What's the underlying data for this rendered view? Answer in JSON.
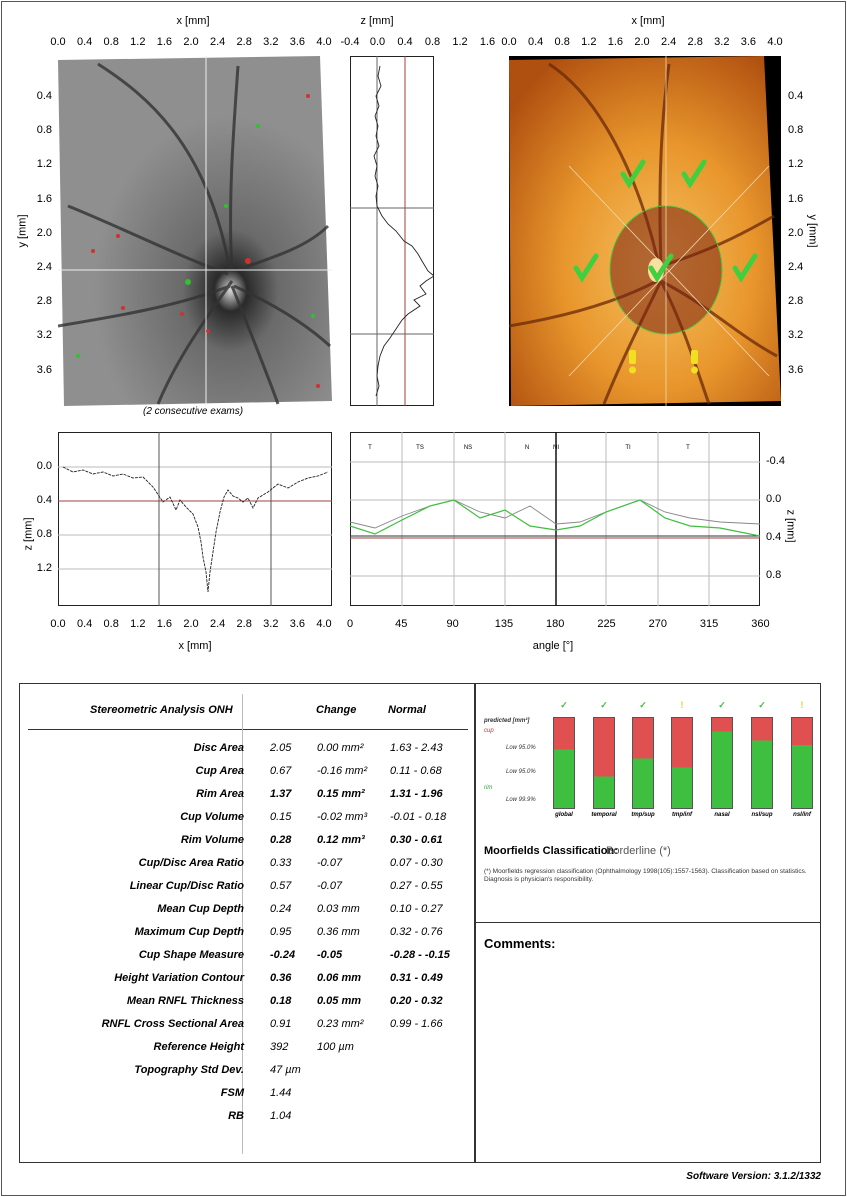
{
  "top_axes": {
    "x_title": "x [mm]",
    "z_title": "z [mm]",
    "y_title": "y [mm]",
    "x_ticks": [
      "0.0",
      "0.4",
      "0.8",
      "1.2",
      "1.6",
      "2.0",
      "2.4",
      "2.8",
      "3.2",
      "3.6",
      "4.0"
    ],
    "z_ticks": [
      "-0.4",
      "0.0",
      "0.4",
      "0.8",
      "1.2",
      "1.6"
    ],
    "y_ticks": [
      "0.4",
      "0.8",
      "1.2",
      "1.6",
      "2.0",
      "2.4",
      "2.8",
      "3.2",
      "3.6"
    ]
  },
  "caption": "(2 consecutive exams)",
  "bottom_left_chart": {
    "ylabel": "z [mm]",
    "xlabel": "x [mm]",
    "y_ticks": [
      "0.0",
      "0.4",
      "0.8",
      "1.2"
    ],
    "x_ticks": [
      "0.0",
      "0.4",
      "0.8",
      "1.2",
      "1.6",
      "2.0",
      "2.4",
      "2.8",
      "3.2",
      "3.6",
      "4.0"
    ]
  },
  "bottom_right_chart": {
    "xlabel": "angle [°]",
    "ylabel": "z [mm]",
    "x_ticks": [
      "0",
      "45",
      "90",
      "135",
      "180",
      "225",
      "270",
      "315",
      "360"
    ],
    "y_ticks": [
      "-0.4",
      "0.0",
      "0.4",
      "0.8"
    ],
    "sector_labels": [
      "T",
      "TS",
      "NS",
      "N",
      "NI",
      "TI",
      "T"
    ]
  },
  "table": {
    "title": "Stereometric Analysis ONH",
    "col_change": "Change",
    "col_normal": "Normal",
    "rows": [
      {
        "label": "Disc Area",
        "value": "2.05",
        "change": "0.00  mm²",
        "normal": "1.63 - 2.43",
        "bold": false
      },
      {
        "label": "Cup Area",
        "value": "0.67",
        "change": "-0.16  mm²",
        "normal": "0.11 - 0.68",
        "bold": false
      },
      {
        "label": "Rim Area",
        "value": "1.37",
        "change": "0.15  mm²",
        "normal": "1.31 - 1.96",
        "bold": true
      },
      {
        "label": "Cup Volume",
        "value": "0.15",
        "change": "-0.02  mm³",
        "normal": "-0.01 - 0.18",
        "bold": false
      },
      {
        "label": "Rim Volume",
        "value": "0.28",
        "change": "0.12  mm³",
        "normal": "0.30 - 0.61",
        "bold": true
      },
      {
        "label": "Cup/Disc Area Ratio",
        "value": "0.33",
        "change": "-0.07",
        "normal": "0.07 - 0.30",
        "bold": false
      },
      {
        "label": "Linear Cup/Disc Ratio",
        "value": "0.57",
        "change": "-0.07",
        "normal": "0.27 - 0.55",
        "bold": false
      },
      {
        "label": "Mean Cup Depth",
        "value": "0.24",
        "change": "0.03  mm",
        "normal": "0.10 - 0.27",
        "bold": false
      },
      {
        "label": "Maximum Cup Depth",
        "value": "0.95",
        "change": "0.36  mm",
        "normal": "0.32 - 0.76",
        "bold": false
      },
      {
        "label": "Cup Shape Measure",
        "value": "-0.24",
        "change": "-0.05",
        "normal": "-0.28 - -0.15",
        "bold": true
      },
      {
        "label": "Height Variation Contour",
        "value": "0.36",
        "change": "0.06  mm",
        "normal": "0.31 - 0.49",
        "bold": true
      },
      {
        "label": "Mean RNFL Thickness",
        "value": "0.18",
        "change": "0.05  mm",
        "normal": "0.20 - 0.32",
        "bold": true
      },
      {
        "label": "RNFL Cross Sectional Area",
        "value": "0.91",
        "change": "0.23  mm²",
        "normal": "0.99 - 1.66",
        "bold": false
      },
      {
        "label": "Reference Height",
        "value": "392",
        "change": "100  µm",
        "normal": "",
        "bold": false
      },
      {
        "label": "Topography Std Dev.",
        "value": "47  µm",
        "change": "",
        "normal": "",
        "bold": false
      },
      {
        "label": "FSM",
        "value": "1.44",
        "change": "",
        "normal": "",
        "bold": false
      },
      {
        "label": "RB",
        "value": "1.04",
        "change": "",
        "normal": "",
        "bold": false
      }
    ]
  },
  "moorfields": {
    "predicted_label": "predicted [mm²]",
    "cup_label": "cup",
    "rim_label": "rim",
    "lim_labels": [
      "Low 95.0%",
      "Low 95.0%",
      "Low 99.9%"
    ],
    "sectors": [
      "global",
      "temporal",
      "tmp/sup",
      "tmp/inf",
      "nasal",
      "nsl/sup",
      "nsl/inf"
    ],
    "status": [
      "ok",
      "ok",
      "ok",
      "borderline",
      "ok",
      "ok",
      "borderline"
    ],
    "cup_fraction": [
      0.35,
      0.65,
      0.45,
      0.55,
      0.15,
      0.25,
      0.3
    ],
    "classification_label": "Moorfields Classification:",
    "classification_value": "Borderline (*)",
    "footnote": "(*) Moorfields regression classification (Ophthalmology 1998(105):1557-1563). Classification based on statistics. Diagnosis is physician's responsibility."
  },
  "comments_label": "Comments:",
  "software_version": "Software Version: 3.1.2/1332",
  "colors": {
    "green": "#3fbf3f",
    "red": "#e05050",
    "yellow": "#f0d020"
  }
}
